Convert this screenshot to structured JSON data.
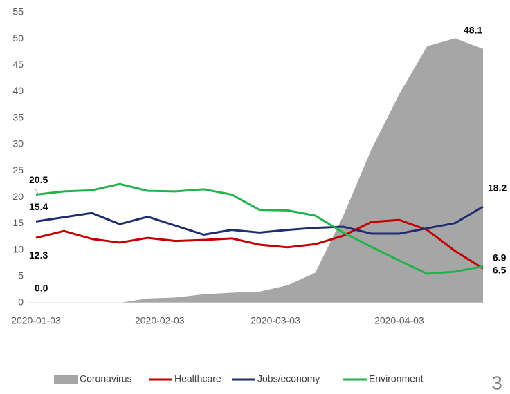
{
  "chart_data": {
    "type": "line",
    "x": [
      "2020-01-03",
      "2020-01-10",
      "2020-01-17",
      "2020-01-24",
      "2020-01-31",
      "2020-02-07",
      "2020-02-14",
      "2020-02-21",
      "2020-02-28",
      "2020-03-06",
      "2020-03-13",
      "2020-03-20",
      "2020-03-27",
      "2020-04-03",
      "2020-04-10",
      "2020-04-17",
      "2020-04-24"
    ],
    "xlim": [
      "2020-01-03",
      "2020-04-24"
    ],
    "xticks": [
      "2020-01-03",
      "2020-02-03",
      "2020-03-03",
      "2020-04-03"
    ],
    "ylim": [
      0,
      55
    ],
    "yticks": [
      0,
      5,
      10,
      15,
      20,
      25,
      30,
      35,
      40,
      45,
      50,
      55
    ],
    "series": [
      {
        "name": "Coronavirus",
        "kind": "area",
        "color": "#a6a6a6",
        "values": [
          0,
          0,
          0,
          0,
          0.8,
          1.0,
          1.6,
          1.9,
          2.1,
          3.3,
          5.7,
          16.5,
          29.0,
          39.5,
          48.6,
          50.1,
          48.1
        ],
        "value_labels": [
          "0.0",
          null,
          null,
          null,
          null,
          null,
          null,
          null,
          null,
          null,
          null,
          null,
          null,
          null,
          null,
          null,
          "48.1"
        ]
      },
      {
        "name": "Healthcare",
        "color": "#c00000",
        "values": [
          12.3,
          13.6,
          12.1,
          11.4,
          12.3,
          11.7,
          11.9,
          12.2,
          11.0,
          10.5,
          11.1,
          12.7,
          15.3,
          15.7,
          13.8,
          9.8,
          6.5
        ],
        "value_labels": [
          "12.3",
          null,
          null,
          null,
          null,
          null,
          null,
          null,
          null,
          null,
          null,
          null,
          null,
          null,
          null,
          null,
          "6.5"
        ]
      },
      {
        "name": "Jobs/economy",
        "color": "#1f2f6e",
        "values": [
          15.4,
          16.2,
          17.0,
          14.9,
          16.3,
          14.6,
          12.9,
          13.8,
          13.3,
          13.8,
          14.2,
          14.4,
          13.1,
          13.1,
          14.1,
          15.1,
          18.2
        ],
        "value_labels": [
          "15.4",
          null,
          null,
          null,
          null,
          null,
          null,
          null,
          null,
          null,
          null,
          null,
          null,
          null,
          null,
          null,
          "18.2"
        ]
      },
      {
        "name": "Environment",
        "color": "#21b24b",
        "values": [
          20.5,
          21.1,
          21.3,
          22.5,
          21.2,
          21.1,
          21.5,
          20.5,
          17.6,
          17.5,
          16.5,
          13.3,
          10.6,
          8.0,
          5.5,
          5.9,
          6.9
        ],
        "value_labels": [
          "20.5",
          null,
          null,
          null,
          null,
          null,
          null,
          null,
          null,
          null,
          null,
          null,
          null,
          null,
          null,
          null,
          "6.9"
        ]
      }
    ],
    "page_number": "3"
  }
}
